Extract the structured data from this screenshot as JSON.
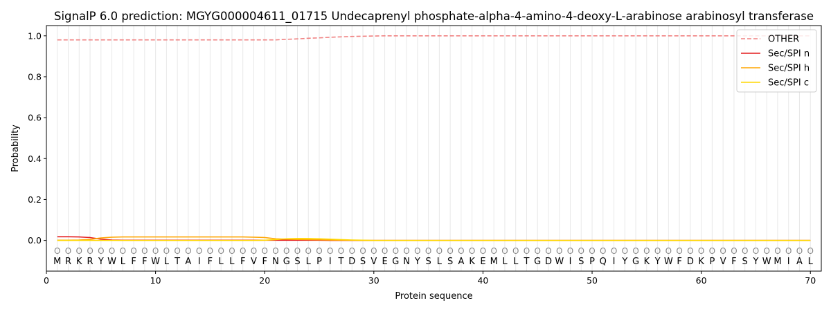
{
  "chart_data": {
    "type": "line",
    "title": "SignalP 6.0 prediction: MGYG000004611_01715 Undecaprenyl phosphate-alpha-4-amino-4-deoxy-L-arabinose arabinosyl transferase",
    "xlabel": "Protein sequence",
    "ylabel": "Probability",
    "xlim": [
      0,
      71
    ],
    "ylim": [
      -0.15,
      1.05
    ],
    "xticks": [
      0,
      10,
      20,
      30,
      40,
      50,
      60,
      70
    ],
    "yticks": [
      0.0,
      0.2,
      0.4,
      0.6,
      0.8,
      1.0
    ],
    "xtick_labels": [
      "0",
      "10",
      "20",
      "30",
      "40",
      "50",
      "60",
      "70"
    ],
    "ytick_labels": [
      "0.0",
      "0.2",
      "0.4",
      "0.6",
      "0.8",
      "1.0"
    ],
    "grid": "vertical lines at each residue",
    "legend_position": "top-right",
    "sequence": [
      "M",
      "R",
      "K",
      "R",
      "Y",
      "W",
      "L",
      "F",
      "F",
      "W",
      "L",
      "T",
      "A",
      "I",
      "F",
      "L",
      "L",
      "F",
      "V",
      "F",
      "N",
      "G",
      "S",
      "L",
      "P",
      "I",
      "T",
      "D",
      "S",
      "V",
      "E",
      "G",
      "N",
      "Y",
      "S",
      "L",
      "S",
      "A",
      "K",
      "E",
      "M",
      "L",
      "L",
      "T",
      "G",
      "D",
      "W",
      "I",
      "S",
      "P",
      "Q",
      "I",
      "Y",
      "G",
      "K",
      "Y",
      "W",
      "F",
      "D",
      "K",
      "P",
      "V",
      "F",
      "S",
      "Y",
      "W",
      "M",
      "I",
      "A",
      "L"
    ],
    "residue_marker": "O",
    "series": [
      {
        "name": "OTHER",
        "color": "#f08080",
        "dash": "dashed",
        "values": [
          0.98,
          0.98,
          0.98,
          0.98,
          0.98,
          0.98,
          0.98,
          0.98,
          0.98,
          0.98,
          0.98,
          0.98,
          0.98,
          0.98,
          0.98,
          0.98,
          0.98,
          0.98,
          0.98,
          0.98,
          0.98,
          0.983,
          0.985,
          0.988,
          0.99,
          0.993,
          0.995,
          0.997,
          0.998,
          0.999,
          1.0,
          1.0,
          1.0,
          1.0,
          1.0,
          1.0,
          1.0,
          1.0,
          1.0,
          1.0,
          1.0,
          1.0,
          1.0,
          1.0,
          1.0,
          1.0,
          1.0,
          1.0,
          1.0,
          1.0,
          1.0,
          1.0,
          1.0,
          1.0,
          1.0,
          1.0,
          1.0,
          1.0,
          1.0,
          1.0,
          1.0,
          1.0,
          1.0,
          1.0,
          1.0,
          1.0,
          1.0,
          1.0,
          1.0,
          1.0
        ]
      },
      {
        "name": "Sec/SPI n",
        "color": "#e41a1c",
        "dash": "solid",
        "values": [
          0.018,
          0.018,
          0.017,
          0.014,
          0.006,
          0.002,
          0.001,
          0.001,
          0.001,
          0.001,
          0.001,
          0.001,
          0.001,
          0.001,
          0.001,
          0.001,
          0.001,
          0.001,
          0.001,
          0.001,
          0.001,
          0.001,
          0.001,
          0.001,
          0.001,
          0.0,
          0.0,
          0.0,
          0.0,
          0.0,
          0.0,
          0.0,
          0.0,
          0.0,
          0.0,
          0.0,
          0.0,
          0.0,
          0.0,
          0.0,
          0.0,
          0.0,
          0.0,
          0.0,
          0.0,
          0.0,
          0.0,
          0.0,
          0.0,
          0.0,
          0.0,
          0.0,
          0.0,
          0.0,
          0.0,
          0.0,
          0.0,
          0.0,
          0.0,
          0.0,
          0.0,
          0.0,
          0.0,
          0.0,
          0.0,
          0.0,
          0.0,
          0.0,
          0.0,
          0.0
        ]
      },
      {
        "name": "Sec/SPI h",
        "color": "#ffa500",
        "dash": "solid",
        "values": [
          0.001,
          0.001,
          0.002,
          0.005,
          0.012,
          0.016,
          0.017,
          0.017,
          0.017,
          0.017,
          0.017,
          0.017,
          0.017,
          0.017,
          0.017,
          0.017,
          0.017,
          0.017,
          0.016,
          0.014,
          0.008,
          0.006,
          0.005,
          0.004,
          0.003,
          0.002,
          0.001,
          0.001,
          0.0,
          0.0,
          0.0,
          0.0,
          0.0,
          0.0,
          0.0,
          0.0,
          0.0,
          0.0,
          0.0,
          0.0,
          0.0,
          0.0,
          0.0,
          0.0,
          0.0,
          0.0,
          0.0,
          0.0,
          0.0,
          0.0,
          0.0,
          0.0,
          0.0,
          0.0,
          0.0,
          0.0,
          0.0,
          0.0,
          0.0,
          0.0,
          0.0,
          0.0,
          0.0,
          0.0,
          0.0,
          0.0,
          0.0,
          0.0,
          0.0,
          0.0
        ]
      },
      {
        "name": "Sec/SPI c",
        "color": "#ffd700",
        "dash": "solid",
        "values": [
          0.0,
          0.0,
          0.0,
          0.0,
          0.0,
          0.0,
          0.0,
          0.0,
          0.0,
          0.0,
          0.0,
          0.0,
          0.0,
          0.0,
          0.0,
          0.0,
          0.0,
          0.0,
          0.0,
          0.001,
          0.004,
          0.008,
          0.009,
          0.009,
          0.008,
          0.006,
          0.004,
          0.002,
          0.001,
          0.0,
          0.0,
          0.0,
          0.0,
          0.0,
          0.0,
          0.0,
          0.0,
          0.0,
          0.0,
          0.0,
          0.0,
          0.0,
          0.0,
          0.0,
          0.0,
          0.0,
          0.0,
          0.0,
          0.0,
          0.0,
          0.0,
          0.0,
          0.0,
          0.0,
          0.0,
          0.0,
          0.0,
          0.0,
          0.0,
          0.0,
          0.0,
          0.0,
          0.0,
          0.0,
          0.0,
          0.0,
          0.0,
          0.0,
          0.0,
          0.0
        ]
      }
    ]
  }
}
